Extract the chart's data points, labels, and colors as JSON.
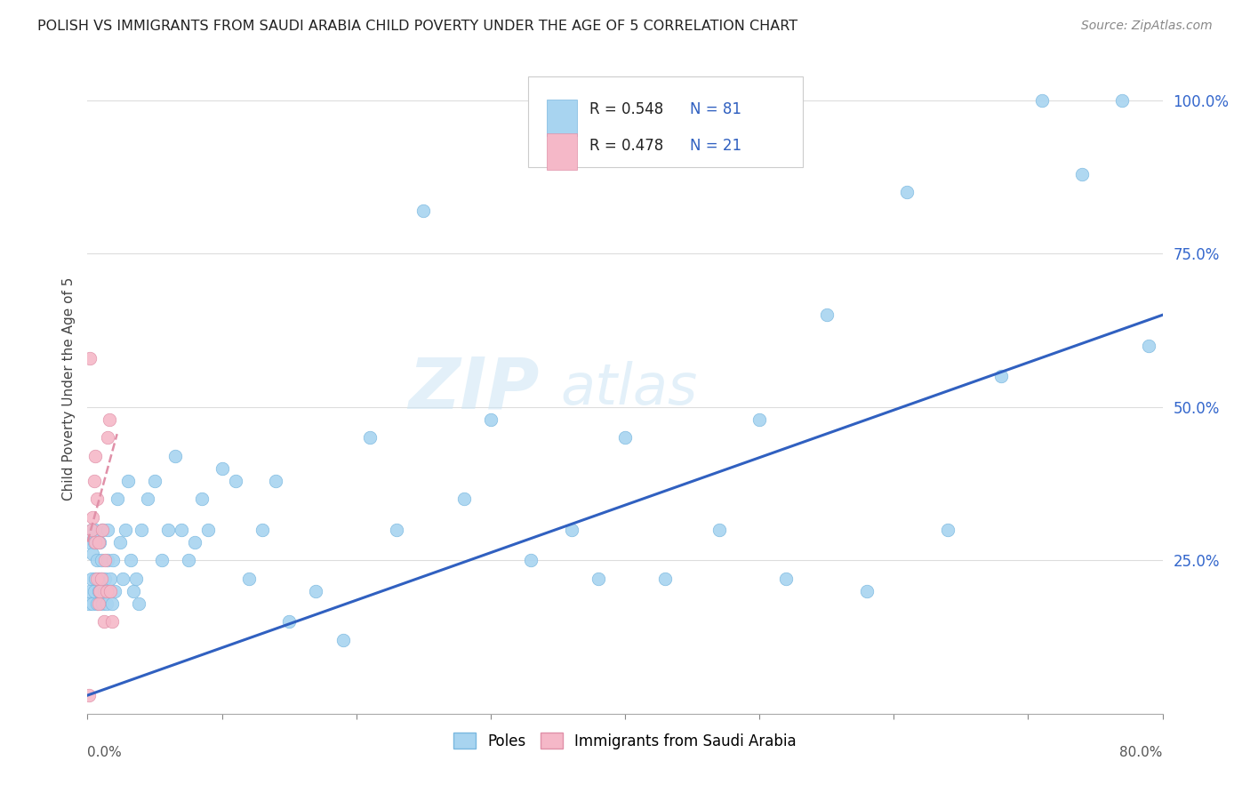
{
  "title": "POLISH VS IMMIGRANTS FROM SAUDI ARABIA CHILD POVERTY UNDER THE AGE OF 5 CORRELATION CHART",
  "source": "Source: ZipAtlas.com",
  "ylabel": "Child Poverty Under the Age of 5",
  "yticks": [
    0.0,
    0.25,
    0.5,
    0.75,
    1.0
  ],
  "ytick_labels": [
    "",
    "25.0%",
    "50.0%",
    "75.0%",
    "100.0%"
  ],
  "xlim": [
    0.0,
    0.8
  ],
  "ylim": [
    0.0,
    1.06
  ],
  "legend_r1": "R = 0.548",
  "legend_n1": "N = 81",
  "legend_r2": "R = 0.478",
  "legend_n2": "N = 21",
  "watermark_zip": "ZIP",
  "watermark_atlas": "atlas",
  "poles_color": "#a8d4f0",
  "poles_edge_color": "#7ab8e0",
  "saudi_color": "#f5b8c8",
  "saudi_edge_color": "#e090a8",
  "regression_poles_color": "#3060c0",
  "regression_saudi_color": "#e090a8",
  "regression_poles_start_y": 0.03,
  "regression_poles_end_y": 0.65,
  "regression_saudi_intercept": 0.28,
  "regression_saudi_slope": 8.0,
  "poles_x": [
    0.001,
    0.002,
    0.002,
    0.003,
    0.003,
    0.004,
    0.004,
    0.005,
    0.005,
    0.006,
    0.006,
    0.007,
    0.007,
    0.008,
    0.008,
    0.009,
    0.009,
    0.01,
    0.01,
    0.011,
    0.011,
    0.012,
    0.013,
    0.014,
    0.015,
    0.015,
    0.016,
    0.017,
    0.018,
    0.019,
    0.02,
    0.022,
    0.024,
    0.026,
    0.028,
    0.03,
    0.032,
    0.034,
    0.036,
    0.038,
    0.04,
    0.045,
    0.05,
    0.055,
    0.06,
    0.065,
    0.07,
    0.075,
    0.08,
    0.085,
    0.09,
    0.1,
    0.11,
    0.12,
    0.13,
    0.14,
    0.15,
    0.17,
    0.19,
    0.21,
    0.23,
    0.25,
    0.28,
    0.3,
    0.33,
    0.36,
    0.38,
    0.4,
    0.43,
    0.47,
    0.5,
    0.52,
    0.55,
    0.58,
    0.61,
    0.64,
    0.68,
    0.71,
    0.74,
    0.77,
    0.79
  ],
  "poles_y": [
    0.18,
    0.2,
    0.28,
    0.22,
    0.3,
    0.18,
    0.26,
    0.2,
    0.28,
    0.22,
    0.3,
    0.18,
    0.25,
    0.2,
    0.22,
    0.28,
    0.2,
    0.22,
    0.25,
    0.18,
    0.3,
    0.2,
    0.22,
    0.18,
    0.25,
    0.3,
    0.2,
    0.22,
    0.18,
    0.25,
    0.2,
    0.35,
    0.28,
    0.22,
    0.3,
    0.38,
    0.25,
    0.2,
    0.22,
    0.18,
    0.3,
    0.35,
    0.38,
    0.25,
    0.3,
    0.42,
    0.3,
    0.25,
    0.28,
    0.35,
    0.3,
    0.4,
    0.38,
    0.22,
    0.3,
    0.38,
    0.15,
    0.2,
    0.12,
    0.45,
    0.3,
    0.82,
    0.35,
    0.48,
    0.25,
    0.3,
    0.22,
    0.45,
    0.22,
    0.3,
    0.48,
    0.22,
    0.65,
    0.2,
    0.85,
    0.3,
    0.55,
    1.0,
    0.88,
    1.0,
    0.6
  ],
  "saudi_x": [
    0.001,
    0.002,
    0.003,
    0.004,
    0.005,
    0.006,
    0.006,
    0.007,
    0.007,
    0.008,
    0.008,
    0.009,
    0.01,
    0.011,
    0.012,
    0.013,
    0.014,
    0.015,
    0.016,
    0.017,
    0.018
  ],
  "saudi_y": [
    0.03,
    0.58,
    0.3,
    0.32,
    0.38,
    0.42,
    0.28,
    0.35,
    0.22,
    0.28,
    0.18,
    0.2,
    0.22,
    0.3,
    0.15,
    0.25,
    0.2,
    0.45,
    0.48,
    0.2,
    0.15
  ]
}
